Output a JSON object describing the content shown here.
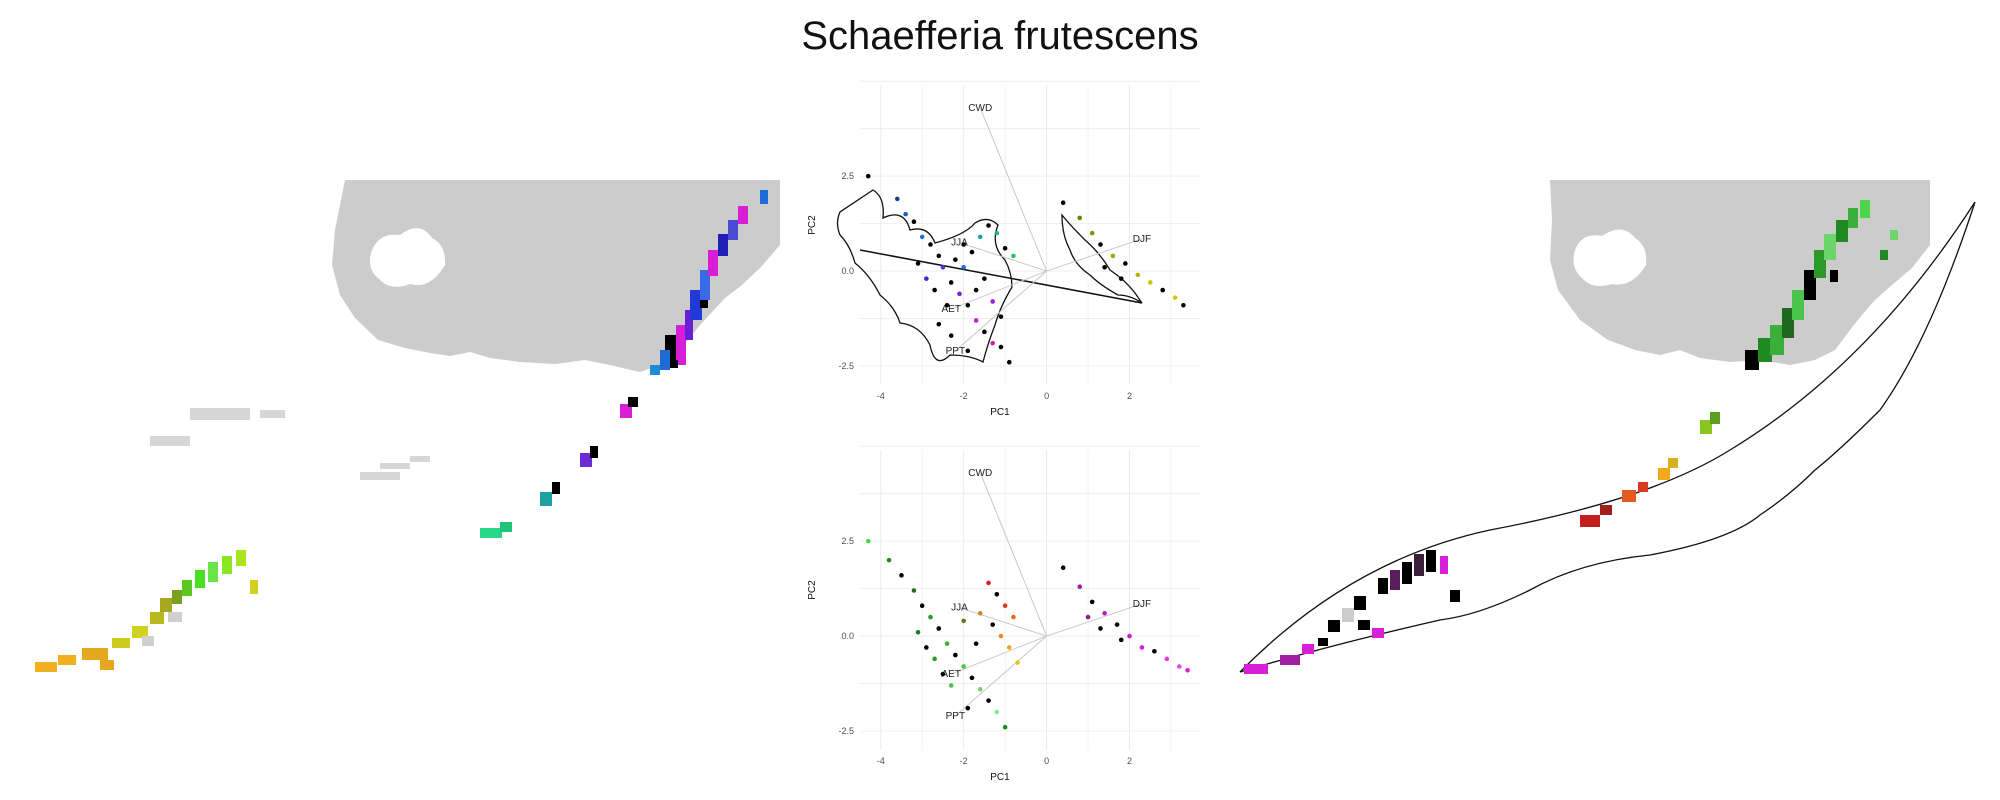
{
  "title": "Schaefferia frutescens",
  "chart_data": [
    {
      "type": "scatter",
      "panel": "top",
      "xlabel": "PC1",
      "ylabel": "PC2",
      "xlim": [
        -4.5,
        3.7
      ],
      "ylim": [
        -3.0,
        4.9
      ],
      "xticks": [
        "-4",
        "-2",
        "0",
        "2"
      ],
      "yticks": [
        "2.5",
        "0.0",
        "-2.5"
      ],
      "grid": true,
      "loadings": [
        {
          "label": "CWD",
          "x": -1.6,
          "y": 4.3
        },
        {
          "label": "DJF",
          "x": 2.3,
          "y": 0.85
        },
        {
          "label": "JJA",
          "x": -2.1,
          "y": 0.75
        },
        {
          "label": "AET",
          "x": -2.3,
          "y": -1.0
        },
        {
          "label": "PPT",
          "x": -2.2,
          "y": -2.1
        }
      ],
      "points": [
        {
          "x": -4.3,
          "y": 2.5,
          "c": "#000000"
        },
        {
          "x": -3.6,
          "y": 1.9,
          "c": "#1f3a8a"
        },
        {
          "x": -3.4,
          "y": 1.5,
          "c": "#1f5fb4"
        },
        {
          "x": -3.2,
          "y": 1.3,
          "c": "#000000"
        },
        {
          "x": -3.0,
          "y": 0.9,
          "c": "#2a6fd6"
        },
        {
          "x": -2.8,
          "y": 0.7,
          "c": "#000000"
        },
        {
          "x": -2.6,
          "y": 0.4,
          "c": "#000000"
        },
        {
          "x": -2.5,
          "y": 0.1,
          "c": "#3b3bd6"
        },
        {
          "x": -2.3,
          "y": -0.3,
          "c": "#000000"
        },
        {
          "x": -2.1,
          "y": -0.6,
          "c": "#7a1fd6"
        },
        {
          "x": -1.9,
          "y": -0.9,
          "c": "#000000"
        },
        {
          "x": -1.7,
          "y": -1.3,
          "c": "#c21fd6"
        },
        {
          "x": -1.5,
          "y": -1.6,
          "c": "#000000"
        },
        {
          "x": -1.3,
          "y": -1.9,
          "c": "#d61fa8"
        },
        {
          "x": -1.1,
          "y": -2.0,
          "c": "#000000"
        },
        {
          "x": -0.9,
          "y": -2.4,
          "c": "#000000"
        },
        {
          "x": -3.1,
          "y": 0.2,
          "c": "#000000"
        },
        {
          "x": -2.9,
          "y": -0.2,
          "c": "#4b1fd6"
        },
        {
          "x": -2.7,
          "y": -0.5,
          "c": "#000000"
        },
        {
          "x": -2.4,
          "y": -0.9,
          "c": "#000000"
        },
        {
          "x": -2.2,
          "y": 0.3,
          "c": "#000000"
        },
        {
          "x": -2.0,
          "y": 0.1,
          "c": "#1f6bd6"
        },
        {
          "x": -1.8,
          "y": 0.5,
          "c": "#000000"
        },
        {
          "x": -1.6,
          "y": 0.9,
          "c": "#1fa0a0"
        },
        {
          "x": -1.4,
          "y": 1.2,
          "c": "#000000"
        },
        {
          "x": -1.2,
          "y": 1.0,
          "c": "#1fb47a"
        },
        {
          "x": -1.0,
          "y": 0.6,
          "c": "#000000"
        },
        {
          "x": -0.8,
          "y": 0.4,
          "c": "#1fc45a"
        },
        {
          "x": -1.5,
          "y": -0.2,
          "c": "#000000"
        },
        {
          "x": -1.7,
          "y": -0.5,
          "c": "#000000"
        },
        {
          "x": -1.3,
          "y": -0.8,
          "c": "#a01fd6"
        },
        {
          "x": -1.1,
          "y": -1.2,
          "c": "#000000"
        },
        {
          "x": -2.6,
          "y": -1.4,
          "c": "#000000"
        },
        {
          "x": -2.3,
          "y": -1.7,
          "c": "#000000"
        },
        {
          "x": -1.9,
          "y": -2.1,
          "c": "#000000"
        },
        {
          "x": -2.0,
          "y": 0.7,
          "c": "#000000"
        },
        {
          "x": 0.4,
          "y": 1.8,
          "c": "#000000"
        },
        {
          "x": 0.8,
          "y": 1.4,
          "c": "#5a8a00"
        },
        {
          "x": 1.1,
          "y": 1.0,
          "c": "#7a9a00"
        },
        {
          "x": 1.3,
          "y": 0.7,
          "c": "#000000"
        },
        {
          "x": 1.6,
          "y": 0.4,
          "c": "#9aaa00"
        },
        {
          "x": 1.9,
          "y": 0.2,
          "c": "#000000"
        },
        {
          "x": 2.2,
          "y": -0.1,
          "c": "#b0b800"
        },
        {
          "x": 2.5,
          "y": -0.3,
          "c": "#c8c800"
        },
        {
          "x": 2.8,
          "y": -0.5,
          "c": "#000000"
        },
        {
          "x": 3.1,
          "y": -0.7,
          "c": "#d8c800"
        },
        {
          "x": 3.3,
          "y": -0.9,
          "c": "#000000"
        },
        {
          "x": 1.4,
          "y": 0.1,
          "c": "#000000"
        },
        {
          "x": 1.8,
          "y": -0.2,
          "c": "#000000"
        }
      ]
    },
    {
      "type": "scatter",
      "panel": "bottom",
      "xlabel": "PC1",
      "ylabel": "PC2",
      "xlim": [
        -4.5,
        3.7
      ],
      "ylim": [
        -3.0,
        4.9
      ],
      "xticks": [
        "-4",
        "-2",
        "0",
        "2"
      ],
      "yticks": [
        "2.5",
        "0.0",
        "-2.5"
      ],
      "grid": true,
      "loadings": [
        {
          "label": "CWD",
          "x": -1.6,
          "y": 4.3
        },
        {
          "label": "DJF",
          "x": 2.3,
          "y": 0.85
        },
        {
          "label": "JJA",
          "x": -2.1,
          "y": 0.75
        },
        {
          "label": "AET",
          "x": -2.3,
          "y": -1.0
        },
        {
          "label": "PPT",
          "x": -2.2,
          "y": -2.1
        }
      ],
      "points": [
        {
          "x": -4.3,
          "y": 2.5,
          "c": "#4bd64b"
        },
        {
          "x": -3.8,
          "y": 2.0,
          "c": "#1f8a1f"
        },
        {
          "x": -3.5,
          "y": 1.6,
          "c": "#000000"
        },
        {
          "x": -3.2,
          "y": 1.2,
          "c": "#1f6a1f"
        },
        {
          "x": -3.0,
          "y": 0.8,
          "c": "#000000"
        },
        {
          "x": -2.8,
          "y": 0.5,
          "c": "#2a9a2a"
        },
        {
          "x": -2.6,
          "y": 0.2,
          "c": "#000000"
        },
        {
          "x": -2.4,
          "y": -0.2,
          "c": "#3ab03a"
        },
        {
          "x": -2.2,
          "y": -0.5,
          "c": "#000000"
        },
        {
          "x": -2.0,
          "y": -0.8,
          "c": "#4bc44b"
        },
        {
          "x": -1.8,
          "y": -1.1,
          "c": "#000000"
        },
        {
          "x": -1.6,
          "y": -1.4,
          "c": "#6ad66a"
        },
        {
          "x": -1.4,
          "y": -1.7,
          "c": "#000000"
        },
        {
          "x": -1.2,
          "y": -2.0,
          "c": "#8ae68a"
        },
        {
          "x": -1.0,
          "y": -2.4,
          "c": "#1f8a1f"
        },
        {
          "x": -3.1,
          "y": 0.1,
          "c": "#1f7a1f"
        },
        {
          "x": -2.9,
          "y": -0.3,
          "c": "#000000"
        },
        {
          "x": -2.7,
          "y": -0.6,
          "c": "#2a9a2a"
        },
        {
          "x": -2.5,
          "y": -1.0,
          "c": "#000000"
        },
        {
          "x": -2.3,
          "y": -1.3,
          "c": "#4bc44b"
        },
        {
          "x": -1.4,
          "y": 1.4,
          "c": "#d61f1f"
        },
        {
          "x": -1.2,
          "y": 1.1,
          "c": "#000000"
        },
        {
          "x": -1.0,
          "y": 0.8,
          "c": "#e63a1f"
        },
        {
          "x": -0.8,
          "y": 0.5,
          "c": "#ee6a1f"
        },
        {
          "x": -1.3,
          "y": 0.3,
          "c": "#000000"
        },
        {
          "x": -1.1,
          "y": 0.0,
          "c": "#f08a1f"
        },
        {
          "x": -0.9,
          "y": -0.3,
          "c": "#f0a81f"
        },
        {
          "x": -0.7,
          "y": -0.7,
          "c": "#e0c81f"
        },
        {
          "x": -1.6,
          "y": 0.6,
          "c": "#c88a1f"
        },
        {
          "x": -1.7,
          "y": -0.2,
          "c": "#000000"
        },
        {
          "x": -2.0,
          "y": 0.4,
          "c": "#5a7a1f"
        },
        {
          "x": -1.9,
          "y": -1.9,
          "c": "#000000"
        },
        {
          "x": 0.4,
          "y": 1.8,
          "c": "#000000"
        },
        {
          "x": 0.8,
          "y": 1.3,
          "c": "#a01fa0"
        },
        {
          "x": 1.1,
          "y": 0.9,
          "c": "#000000"
        },
        {
          "x": 1.4,
          "y": 0.6,
          "c": "#b41fb4"
        },
        {
          "x": 1.7,
          "y": 0.3,
          "c": "#000000"
        },
        {
          "x": 2.0,
          "y": 0.0,
          "c": "#c41fc4"
        },
        {
          "x": 2.3,
          "y": -0.3,
          "c": "#d61fd6"
        },
        {
          "x": 2.6,
          "y": -0.4,
          "c": "#000000"
        },
        {
          "x": 2.9,
          "y": -0.6,
          "c": "#e03ae0"
        },
        {
          "x": 3.2,
          "y": -0.8,
          "c": "#e64ae6"
        },
        {
          "x": 3.4,
          "y": -0.9,
          "c": "#d61fd6"
        },
        {
          "x": 1.3,
          "y": 0.2,
          "c": "#000000"
        },
        {
          "x": 1.8,
          "y": -0.1,
          "c": "#000000"
        },
        {
          "x": 1.0,
          "y": 0.5,
          "c": "#8a1f8a"
        }
      ]
    }
  ]
}
